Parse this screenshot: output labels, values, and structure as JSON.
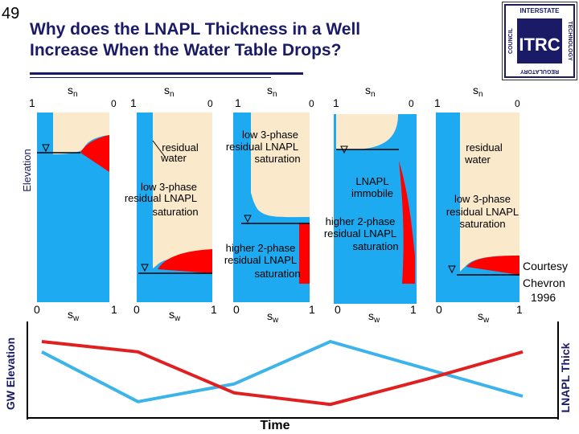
{
  "slide": {
    "number": "49",
    "title_line1": "Why does the LNAPL Thickness in a Well",
    "title_line2": "Increase When the Water Table Drops?"
  },
  "logo": {
    "text_top": "INTERSTATE",
    "text_left": "COUNCIL",
    "text_right": "TECHNOLOGY",
    "text_bottom": "REGULATORY",
    "monogram": "ITRC"
  },
  "axis_labels": {
    "elevation": "Elevation",
    "gw_elevation": "GW Elevation",
    "lnapl_thick": "LNAPL Thick",
    "time": "Time",
    "sn": "sn",
    "sn_sub": "n",
    "sw": "sw",
    "sw_sub": "w",
    "one": "1",
    "zero": "0"
  },
  "panel_labels": {
    "residual_water_1": "residual",
    "residual_water_2": "water",
    "low3_a1": "low 3-phase",
    "low3_a2": "residual LNAPL",
    "low3_a3": "saturation",
    "low3_b1": "low 3-phase",
    "low3_b2": "residual LNAPL",
    "low3_b3": "saturation",
    "higher_a1": "higher 2-phase",
    "higher_a2": "residual LNAPL",
    "higher_a3": "saturation",
    "immobile_1": "LNAPL",
    "immobile_2": "immobile",
    "higher_b1": "higher 2-phase",
    "higher_b2": "residual LNAPL",
    "higher_b3": "saturation",
    "res_water_b1": "residual",
    "res_water_b2": "water",
    "low3_c1": "low 3-phase",
    "low3_c2": "residual LNAPL",
    "low3_c3": "saturation",
    "credit_1": "Courtesy",
    "credit_2": "Chevron",
    "credit_3": "1996"
  },
  "colors": {
    "water": "#1eaaf0",
    "lnapl": "#ff0000",
    "air": "#fbe9cc",
    "title": "#1a1a66",
    "gw_line": "#3cb4ea",
    "thick_line": "#e02020"
  },
  "chart_data": {
    "type": "line",
    "xlabel": "Time",
    "ylabel_left": "GW Elevation",
    "ylabel_right": "LNAPL Thick",
    "series": [
      {
        "name": "GW Elevation",
        "x": [
          0,
          1,
          2,
          3,
          4,
          5
        ],
        "values": [
          0.85,
          0.12,
          0.38,
          1.0,
          0.6,
          0.2
        ]
      },
      {
        "name": "LNAPL Thick",
        "x": [
          0,
          1,
          2,
          3,
          4,
          5
        ],
        "values": [
          1.0,
          0.85,
          0.25,
          0.08,
          0.45,
          0.85
        ]
      }
    ]
  }
}
